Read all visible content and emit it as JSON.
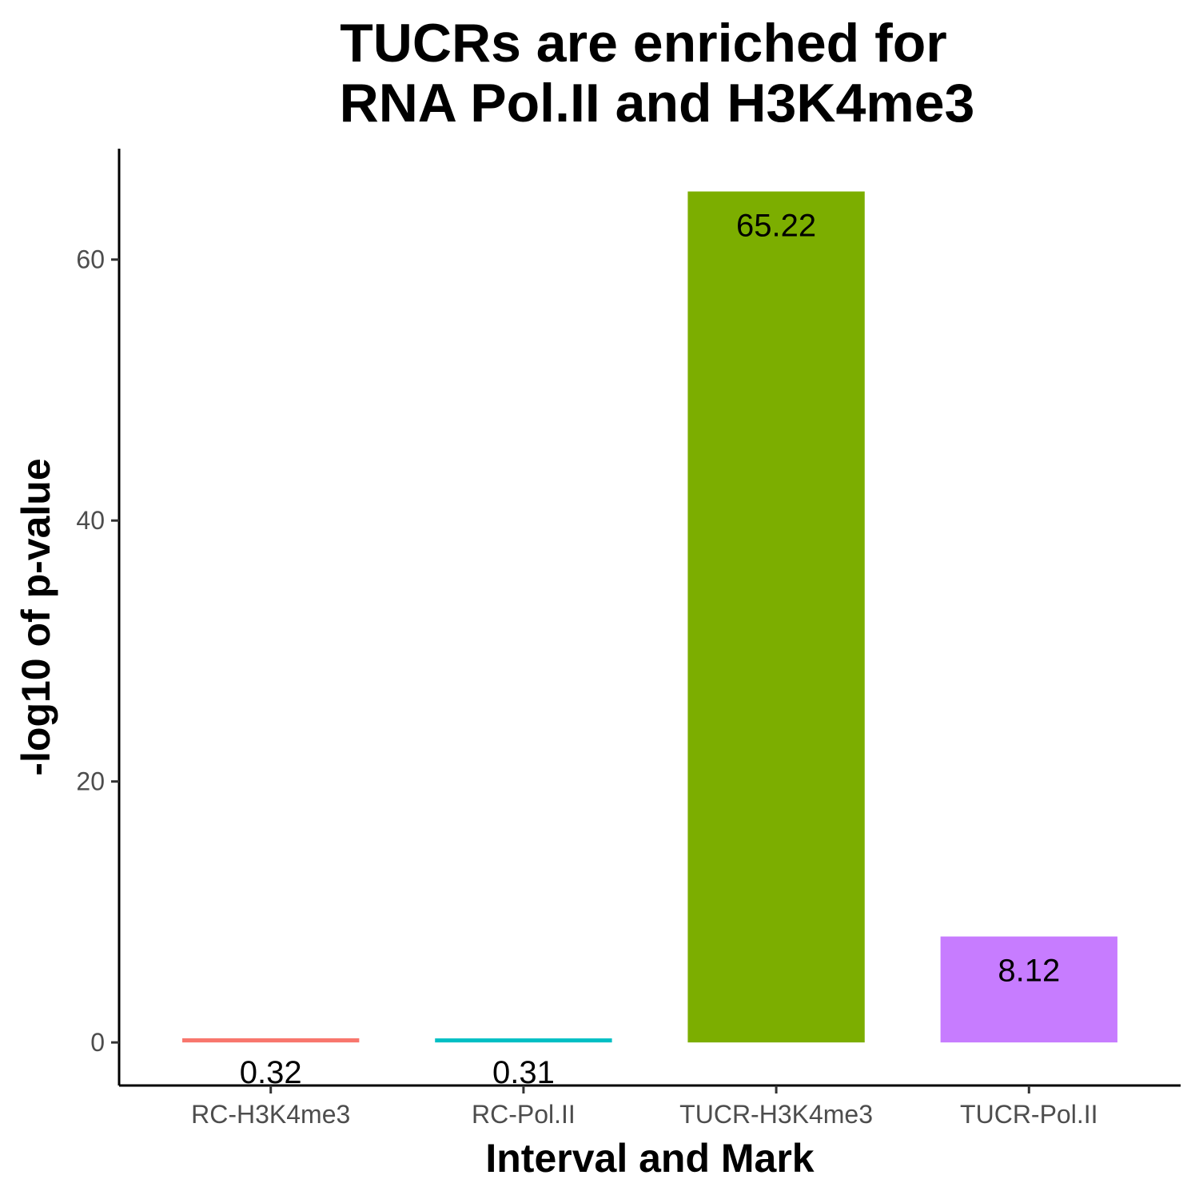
{
  "chart_data": {
    "type": "bar",
    "title_lines": [
      "TUCRs are enriched for",
      "RNA Pol.II and H3K4me3"
    ],
    "xlabel": "Interval and Mark",
    "ylabel": "-log10 of p-value",
    "categories": [
      "RC-H3K4me3",
      "RC-Pol.II",
      "TUCR-H3K4me3",
      "TUCR-Pol.II"
    ],
    "values": [
      0.32,
      0.31,
      65.22,
      8.12
    ],
    "data_labels": [
      "0.32",
      "0.31",
      "65.22",
      "8.12"
    ],
    "colors": [
      "#F8766D",
      "#00BFC4",
      "#7CAE00",
      "#C77CFF"
    ],
    "ylim": [
      -3.3,
      68.5
    ],
    "yticks": [
      0,
      20,
      40,
      60
    ],
    "grid": false,
    "legend": "none"
  }
}
